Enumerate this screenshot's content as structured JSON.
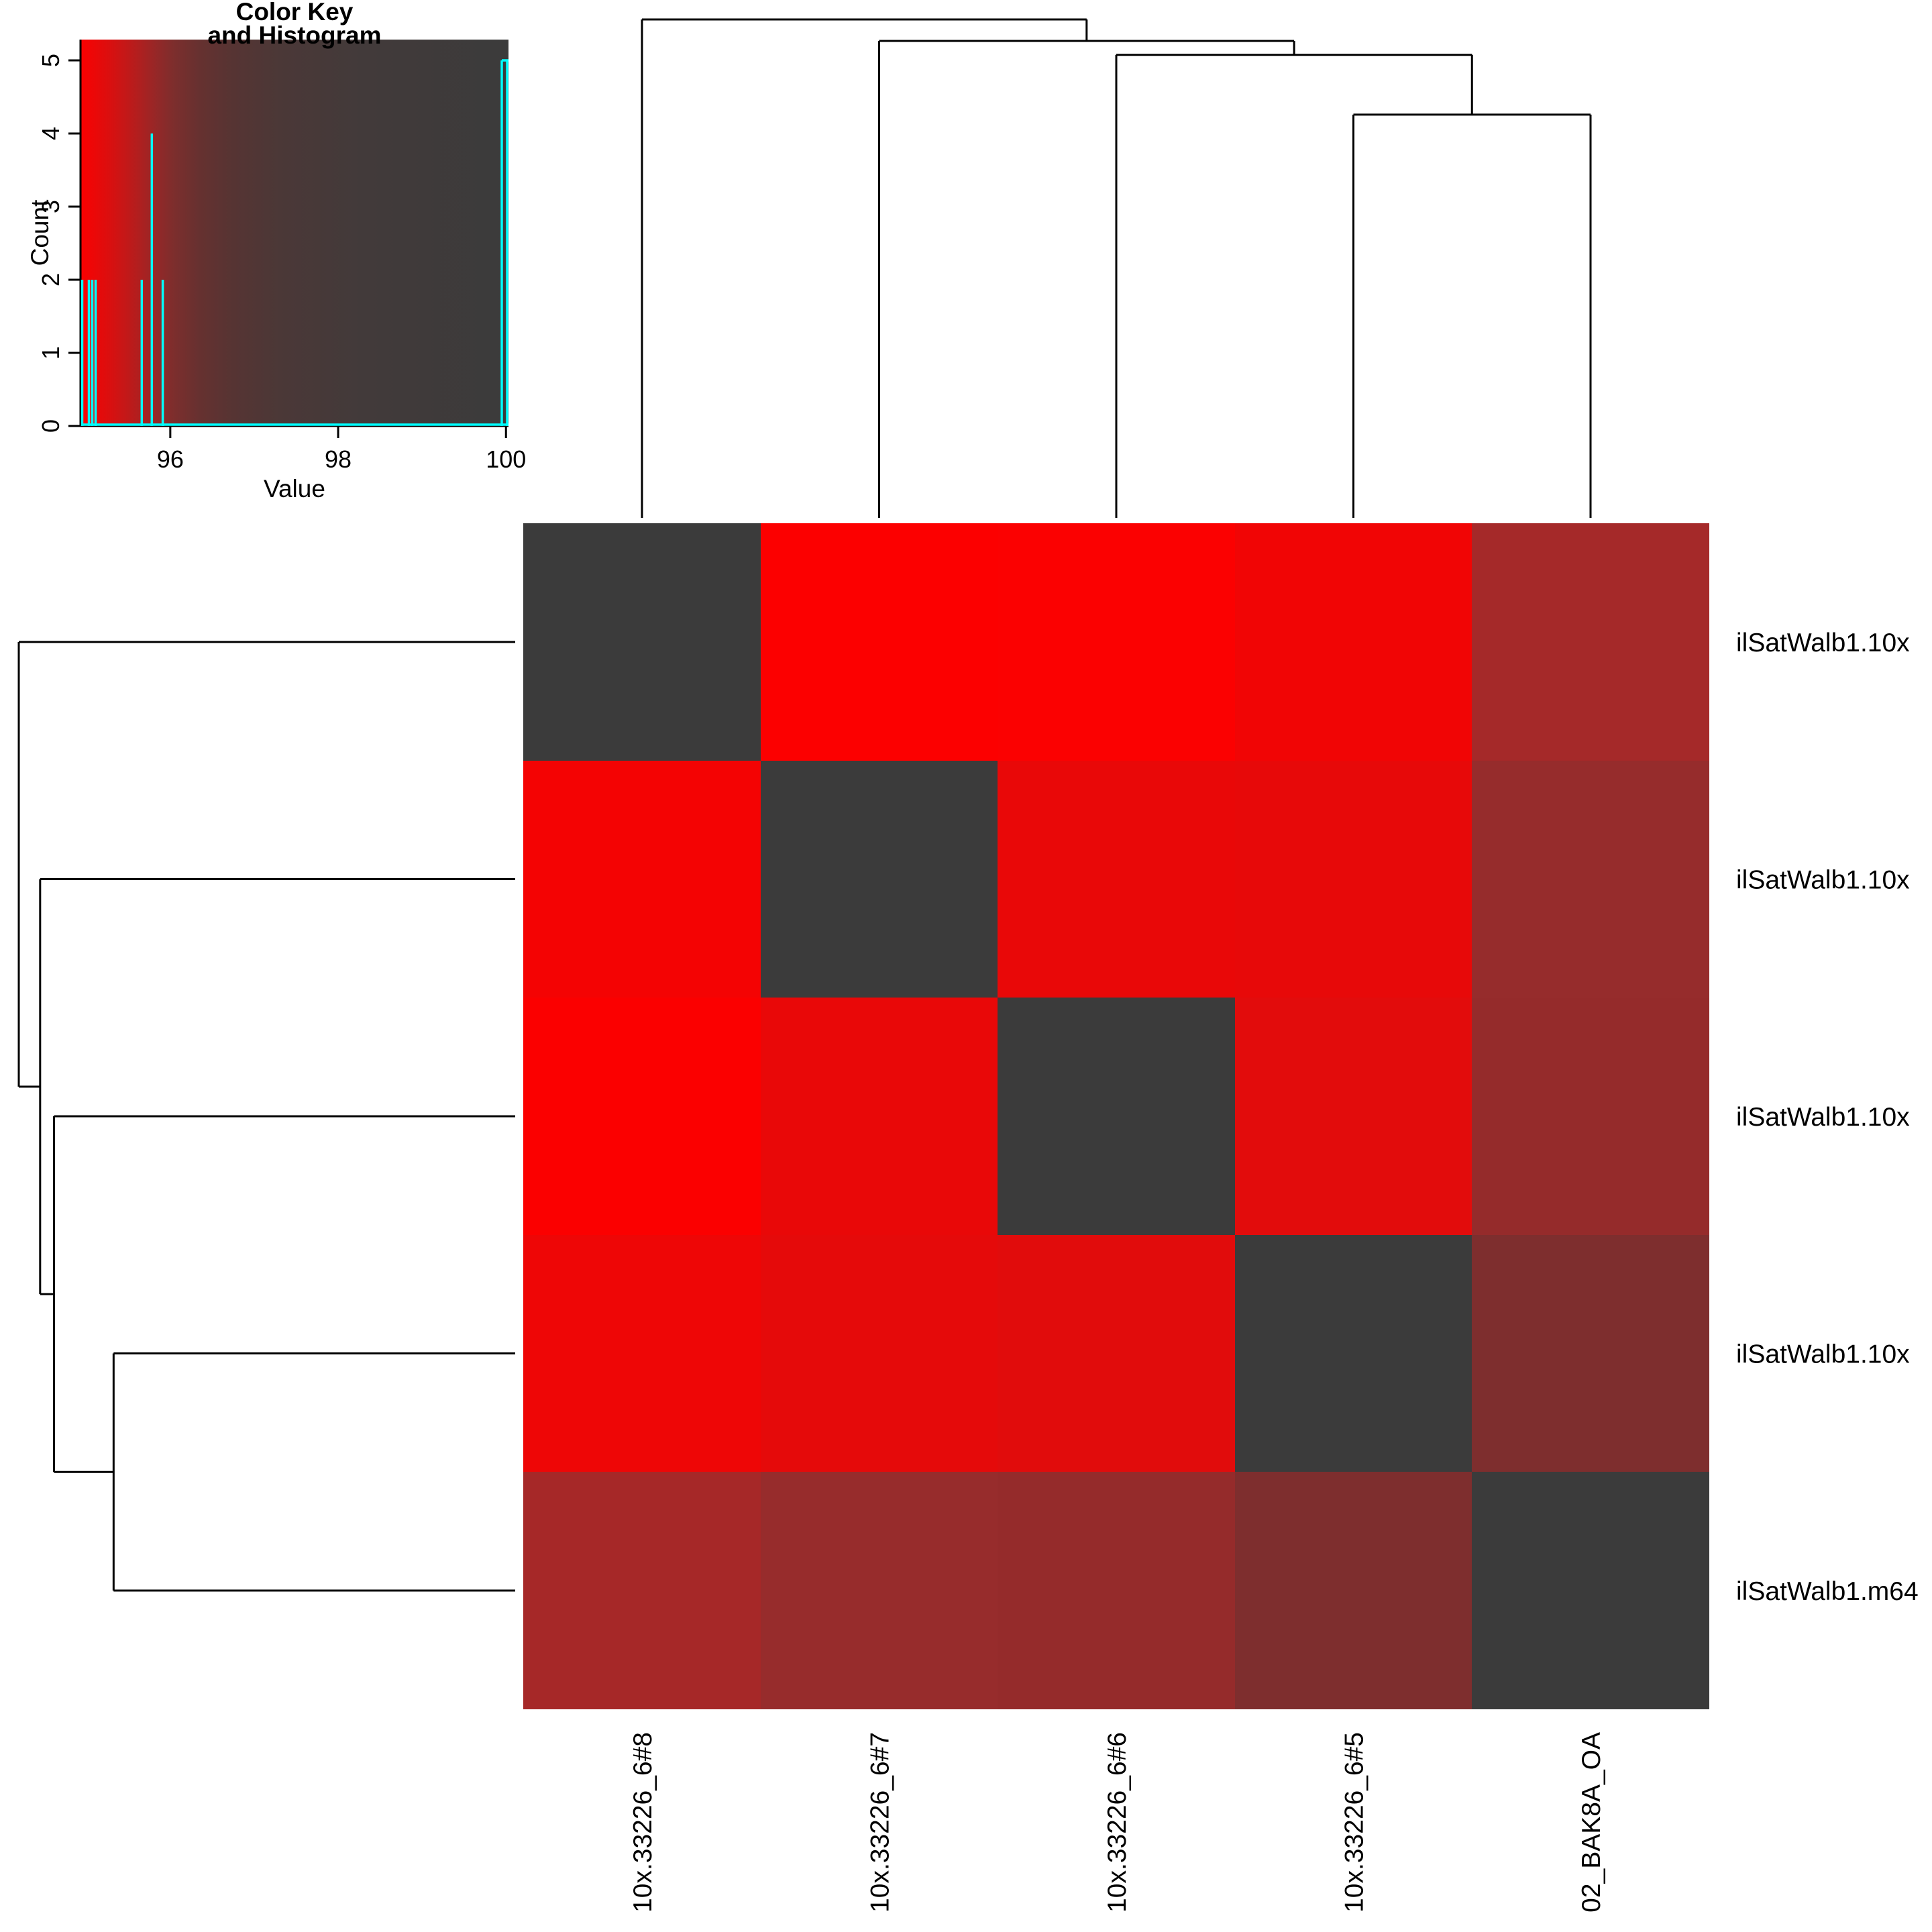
{
  "figure": {
    "background": "#ffffff",
    "line_color": "#000000"
  },
  "color_key": {
    "title_line1": "Color Key",
    "title_line2": "and Histogram",
    "xlabel": "Value",
    "ylabel": "Count",
    "x_ticks": [
      96,
      98,
      100
    ],
    "y_ticks": [
      0,
      1,
      2,
      3,
      4,
      5
    ],
    "value_range": [
      94.93,
      100.03
    ],
    "count_max": 5,
    "histogram_color": "#00ffff",
    "gradient_stops": [
      {
        "value": 94.93,
        "color": "#fa0000"
      },
      {
        "value": 95.05,
        "color": "#ef0606"
      },
      {
        "value": 95.25,
        "color": "#dd0e0e"
      },
      {
        "value": 95.45,
        "color": "#c61717"
      },
      {
        "value": 95.65,
        "color": "#ad2020"
      },
      {
        "value": 95.85,
        "color": "#932828"
      },
      {
        "value": 96.05,
        "color": "#7c2e2d"
      },
      {
        "value": 96.35,
        "color": "#663130"
      },
      {
        "value": 96.75,
        "color": "#563433"
      },
      {
        "value": 97.3,
        "color": "#4b3837"
      },
      {
        "value": 98.3,
        "color": "#423a3a"
      },
      {
        "value": 100.03,
        "color": "#3b3b3b"
      }
    ],
    "histogram_bars": [
      {
        "value": 94.95,
        "count": 2
      },
      {
        "value": 95.03,
        "count": 2
      },
      {
        "value": 95.07,
        "count": 2
      },
      {
        "value": 95.11,
        "count": 2
      },
      {
        "value": 95.66,
        "count": 2
      },
      {
        "value": 95.78,
        "count": 4
      },
      {
        "value": 95.91,
        "count": 2
      },
      {
        "value": 99.95,
        "count": 5,
        "edge_step": true
      }
    ]
  },
  "heatmap": {
    "row_labels": [
      "ilSatWalb1.10x",
      "ilSatWalb1.10x",
      "ilSatWalb1.10x",
      "ilSatWalb1.10x",
      "ilSatWalb1.m64"
    ],
    "col_labels": [
      "10x.33226_6#8",
      "10x.33226_6#7",
      "10x.33226_6#6",
      "10x.33226_6#5",
      "02_BAK8A_OA"
    ],
    "diagonal_color": "#3b3b3b",
    "cell_colors": [
      [
        "#3b3b3b",
        "#fc0000",
        "#fb0101",
        "#f10505",
        "#a52929"
      ],
      [
        "#f40303",
        "#3b3b3b",
        "#e90808",
        "#e70909",
        "#962c2c"
      ],
      [
        "#fb0000",
        "#e90808",
        "#3b3b3b",
        "#e20c0c",
        "#952b2b"
      ],
      [
        "#ee0606",
        "#e50a0a",
        "#e10c0c",
        "#3b3b3b",
        "#7e2e2e"
      ],
      [
        "#a62828",
        "#972c2c",
        "#952b2b",
        "#7e2e2e",
        "#3b3b3b"
      ]
    ]
  },
  "dendrograms": {
    "column": {
      "leaf_order": [
        "10x.33226_6#8",
        "10x.33226_6#7",
        "10x.33226_6#6",
        "10x.33226_6#5",
        "02_BAK8A_OA"
      ],
      "merges": [
        {
          "a": "L0",
          "b": "M1",
          "h": 1.0
        },
        {
          "a": "L1",
          "b": "M2",
          "h": 0.957
        },
        {
          "a": "L2",
          "b": "M3",
          "h": 0.929
        },
        {
          "a": "L3",
          "b": "L4",
          "h": 0.809
        }
      ]
    },
    "row": {
      "leaf_order": [
        "ilSatWalb1.10x",
        "ilSatWalb1.10x",
        "ilSatWalb1.10x",
        "ilSatWalb1.10x",
        "ilSatWalb1.m64"
      ],
      "merges": [
        {
          "a": "L0",
          "b": "M1",
          "h": 1.0
        },
        {
          "a": "L1",
          "b": "M2",
          "h": 0.957
        },
        {
          "a": "L2",
          "b": "M3",
          "h": 0.929
        },
        {
          "a": "L3",
          "b": "L4",
          "h": 0.809
        }
      ]
    }
  },
  "chart_data": {
    "type": "heatmap",
    "title": "Color Key and Histogram",
    "rows": [
      "ilSatWalb1.10x",
      "ilSatWalb1.10x",
      "ilSatWalb1.10x",
      "ilSatWalb1.10x",
      "ilSatWalb1.m64"
    ],
    "columns": [
      "10x.33226_6#8",
      "10x.33226_6#7",
      "10x.33226_6#6",
      "10x.33226_6#5",
      "02_BAK8A_OA"
    ],
    "values": [
      [
        100.0,
        94.95,
        94.96,
        95.03,
        95.66
      ],
      [
        94.95,
        100.0,
        95.05,
        95.07,
        95.79
      ],
      [
        94.96,
        95.05,
        100.0,
        95.11,
        95.78
      ],
      [
        95.03,
        95.07,
        95.11,
        100.0,
        95.91
      ],
      [
        95.66,
        95.79,
        95.78,
        95.91,
        100.0
      ]
    ],
    "value_range": [
      94.9,
      100
    ],
    "colormap": "red (low, ~95) to dark gray (high, 100)",
    "grid": false,
    "legend_position": "top-left color key with cyan histogram",
    "key_histogram": {
      "xlabel": "Value",
      "ylabel": "Count",
      "x_ticks": [
        96,
        98,
        100
      ],
      "y_ticks": [
        0,
        1,
        2,
        3,
        4,
        5
      ],
      "bars": [
        [
          94.95,
          2
        ],
        [
          95.03,
          2
        ],
        [
          95.07,
          2
        ],
        [
          95.11,
          2
        ],
        [
          95.66,
          2
        ],
        [
          95.78,
          4
        ],
        [
          95.91,
          2
        ],
        [
          100.0,
          5
        ]
      ]
    },
    "dendrogram_structure": "caterpillar: ((((col4,col5),col3),col2),col1) same for rows; merge heights normalized [0.809, 0.929, 0.957, 1.0]"
  }
}
